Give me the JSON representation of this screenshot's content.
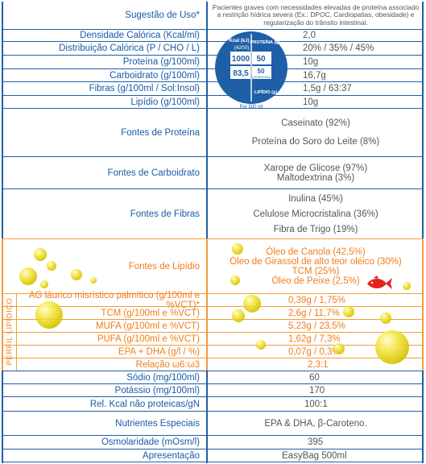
{
  "rows": {
    "sugestao": {
      "label": "Sugestão de Uso*",
      "value": "Pacientes graves com necessidades elevadas de proteína associado a restrição hídrica severa (Ex.: DPOC, Cardiopatias, obesidade) e regularização do trânsito intestinal."
    },
    "densidade": {
      "label": "Densidade Calórica (Kcal/ml)",
      "value": "2,0"
    },
    "distribuicao": {
      "label": "Distribuição Calórica (P / CHO / L)",
      "value": "20% / 35% / 45%"
    },
    "proteina": {
      "label": "Proteína (g/100ml)",
      "value": "10g"
    },
    "carboidrato": {
      "label": "Carboidrato (g/100ml)",
      "value": "16,7g"
    },
    "fibras": {
      "label": "Fibras (g/100ml / Sol:Insol)",
      "value": "1,5g / 63:37"
    },
    "lipidio": {
      "label": "Lipídio (g/100ml)",
      "value": "10g"
    },
    "fontes_proteina": {
      "label": "Fontes de Proteína",
      "values": [
        "Caseinato (92%)",
        "Proteína do Soro do Leite (8%)"
      ]
    },
    "fontes_carboidrato": {
      "label": "Fontes de Carboidrato",
      "values": [
        "Xarope de Glicose (97%)",
        "Maltodextrina (3%)"
      ]
    },
    "fontes_fibras": {
      "label": "Fontes de Fibras",
      "values": [
        "Inulina (45%)",
        "Celulose Microcristalina (36%)",
        "Fibra de Trigo (19%)"
      ]
    },
    "fontes_lipidio": {
      "label": "Fontes de Lipídio",
      "values": [
        "Óleo de Canola (42,5%)",
        "Óleo de Girassol de alto teor oléico (30%)",
        "TCM (25%)",
        "Óleo de Peixe (2,5%)"
      ]
    },
    "ag_lauric": {
      "label": "AG láurico misrístico palmítico (g/100ml e %VCT)*",
      "value": "0,39g / 1,75%"
    },
    "tcm": {
      "label": "TCM (g/100ml e %VCT)",
      "value": "2,6g / 11,7%"
    },
    "mufa": {
      "label": "MUFA (g/100ml e %VCT)",
      "value": "5,23g / 23,5%"
    },
    "pufa": {
      "label": "PUFA (g/100ml e %VCT)",
      "value": "1,62g / 7,3%"
    },
    "epa_dha": {
      "label": "EPA + DHA (g/l / %)",
      "value": "0,07g / 0,3%"
    },
    "relacao": {
      "label": "Relação ω6:ω3",
      "value": "2,3:1"
    },
    "sodio": {
      "label": "Sódio (mg/100ml)",
      "value": "60"
    },
    "potassio": {
      "label": "Potássio (mg/100ml)",
      "value": "170"
    },
    "rel_kcal": {
      "label": "Rel. Kcal não proteicas/gN",
      "value": "100:1"
    },
    "nutrientes": {
      "label": "Nutrientes Especiais",
      "value": "EPA & DHA, β-Caroteno."
    },
    "osmolaridade": {
      "label": "Osmolaridade (mOsm/l)",
      "value": "395"
    },
    "apresentacao": {
      "label": "Apresentação",
      "value": "EasyBag 500ml"
    }
  },
  "perfil_label": "PERFIL LIPÍDICO",
  "badge": {
    "top_left_label": "Kcal (kJ)",
    "top_left_sub": "(4200)",
    "top_left_value": "1000",
    "top_right_label": "PROTEÍNA (g)",
    "top_right_value": "50",
    "bottom_left_value": "83,5",
    "bottom_right_value": "50",
    "bottom_right_sub": "0,35 EPA+DHA",
    "bottom_right_label": "LIPÍDIO (g)",
    "footer": "Por 500 ml",
    "colors": {
      "blue": "#1f5fa8",
      "white": "#ffffff"
    }
  },
  "colors": {
    "blue": "#1a5aa6",
    "orange": "#ef7d1c",
    "text": "#555555",
    "fish": "#e2231a"
  }
}
